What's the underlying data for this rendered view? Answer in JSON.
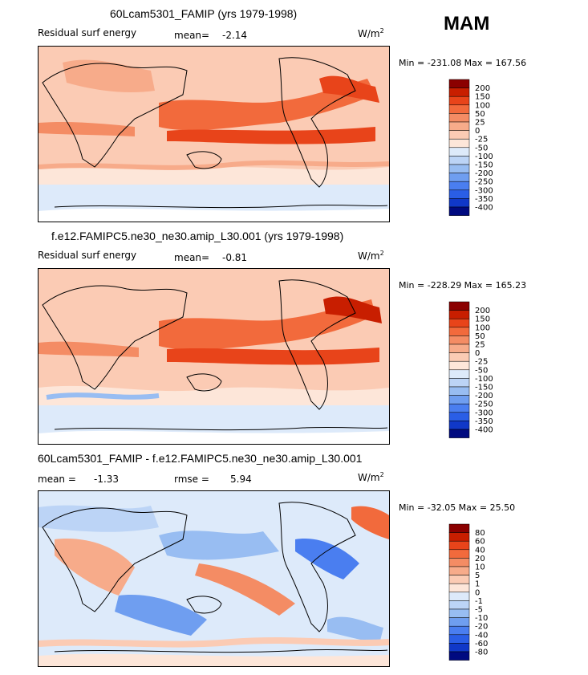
{
  "season": "MAM",
  "panels": [
    {
      "title": "60Lcam5301_FAMIP (yrs 1979-1998)",
      "left_label": "Residual surf energy",
      "mean_label": "mean=",
      "mean_value": "-2.14",
      "units": "W/m",
      "units_exp": "2",
      "minmax": "Min = -231.08 Max = 167.56"
    },
    {
      "title": "f.e12.FAMIPC5.ne30_ne30.amip_L30.001 (yrs 1979-1998)",
      "left_label": "Residual surf energy",
      "mean_label": "mean=",
      "mean_value": "-0.81",
      "units": "W/m",
      "units_exp": "2",
      "minmax": "Min = -228.29 Max = 165.23"
    },
    {
      "title": "60Lcam5301_FAMIP - f.e12.FAMIPC5.ne30_ne30.amip_L30.001",
      "left_label": "mean =",
      "mean_label": "",
      "mean_value": "-1.33",
      "rmse_label": "rmse =",
      "rmse_value": "5.94",
      "units": "W/m",
      "units_exp": "2",
      "minmax": "Min = -32.05 Max =  25.50"
    }
  ],
  "colorbars": [
    {
      "labels": [
        "200",
        "150",
        "100",
        "50",
        "25",
        "0",
        "-25",
        "-50",
        "-100",
        "-150",
        "-200",
        "-250",
        "-300",
        "-350",
        "-400"
      ],
      "colors": [
        "#8b0000",
        "#c81e00",
        "#e8441a",
        "#f26a3c",
        "#f48c64",
        "#f7ab8a",
        "#fbcbb4",
        "#fde6d9",
        "#ddeafa",
        "#bcd4f6",
        "#98bdf2",
        "#6f9ef0",
        "#4a7ef0",
        "#2a5ee6",
        "#1038c8",
        "#000a80"
      ]
    },
    {
      "labels": [
        "200",
        "150",
        "100",
        "50",
        "25",
        "0",
        "-25",
        "-50",
        "-100",
        "-150",
        "-200",
        "-250",
        "-300",
        "-350",
        "-400"
      ],
      "colors": [
        "#8b0000",
        "#c81e00",
        "#e8441a",
        "#f26a3c",
        "#f48c64",
        "#f7ab8a",
        "#fbcbb4",
        "#fde6d9",
        "#ddeafa",
        "#bcd4f6",
        "#98bdf2",
        "#6f9ef0",
        "#4a7ef0",
        "#2a5ee6",
        "#1038c8",
        "#000a80"
      ]
    },
    {
      "labels": [
        "80",
        "60",
        "40",
        "20",
        "10",
        "5",
        "1",
        "0",
        "-1",
        "-5",
        "-10",
        "-20",
        "-40",
        "-60",
        "-80"
      ],
      "colors": [
        "#8b0000",
        "#c81e00",
        "#e8441a",
        "#f26a3c",
        "#f48c64",
        "#f7ab8a",
        "#fbcbb4",
        "#fde6d9",
        "#ddeafa",
        "#bcd4f6",
        "#98bdf2",
        "#6f9ef0",
        "#4a7ef0",
        "#2a5ee6",
        "#1038c8",
        "#000a80"
      ]
    }
  ],
  "chart_data": [
    {
      "type": "heatmap",
      "title": "60Lcam5301_FAMIP (yrs 1979-1998)",
      "variable": "Residual surf energy",
      "units": "W/m2",
      "mean": -2.14,
      "min": -231.08,
      "max": 167.56,
      "contour_levels": [
        -400,
        -350,
        -300,
        -250,
        -200,
        -150,
        -100,
        -50,
        -25,
        0,
        25,
        50,
        100,
        150,
        200
      ]
    },
    {
      "type": "heatmap",
      "title": "f.e12.FAMIPC5.ne30_ne30.amip_L30.001 (yrs 1979-1998)",
      "variable": "Residual surf energy",
      "units": "W/m2",
      "mean": -0.81,
      "min": -228.29,
      "max": 165.23,
      "contour_levels": [
        -400,
        -350,
        -300,
        -250,
        -200,
        -150,
        -100,
        -50,
        -25,
        0,
        25,
        50,
        100,
        150,
        200
      ]
    },
    {
      "type": "heatmap",
      "title": "60Lcam5301_FAMIP - f.e12.FAMIPC5.ne30_ne30.amip_L30.001",
      "units": "W/m2",
      "mean": -1.33,
      "rmse": 5.94,
      "min": -32.05,
      "max": 25.5,
      "contour_levels": [
        -80,
        -60,
        -40,
        -20,
        -10,
        -5,
        -1,
        0,
        1,
        5,
        10,
        20,
        40,
        60,
        80
      ]
    }
  ]
}
